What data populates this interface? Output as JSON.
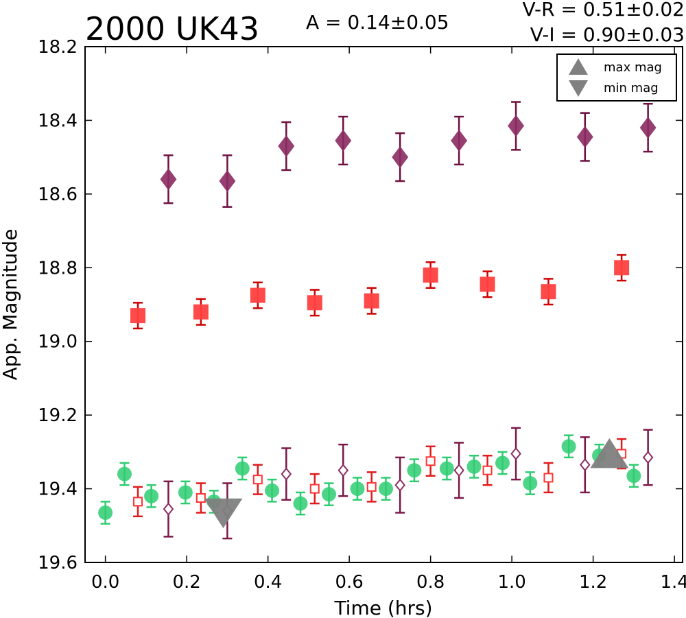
{
  "chart_data": {
    "type": "scatter",
    "title": "2000 UK43",
    "annotations": {
      "amplitude": "A  = 0.14±0.05",
      "v_r": "V-R = 0.51±0.02",
      "v_i": "V-I  = 0.90±0.03"
    },
    "xlabel": "Time (hrs)",
    "ylabel": "App. Magnitude",
    "xlim": [
      -0.05,
      1.42
    ],
    "ylim": [
      19.6,
      18.2
    ],
    "y_inverted": true,
    "grid": false,
    "xticks": [
      "0.0",
      "0.2",
      "0.4",
      "0.6",
      "0.8",
      "1.0",
      "1.2",
      "1.4"
    ],
    "yticks": [
      "18.2",
      "18.4",
      "18.6",
      "18.8",
      "19.0",
      "19.2",
      "19.4",
      "19.6"
    ],
    "legend": {
      "placement": "top-right",
      "entries": [
        {
          "label": "max mag",
          "marker": "triangle-up",
          "color": "#808080"
        },
        {
          "label": "min mag",
          "marker": "triangle-down",
          "color": "#808080"
        }
      ]
    },
    "series": [
      {
        "key": "green-circles",
        "marker": "circle",
        "filled": true,
        "color": "#2ecc71",
        "err_color": "#2ecc71",
        "x": [
          0.0,
          0.047,
          0.113,
          0.197,
          0.267,
          0.337,
          0.41,
          0.48,
          0.55,
          0.62,
          0.69,
          0.76,
          0.84,
          0.907,
          0.977,
          1.045,
          1.14,
          1.215,
          1.3
        ],
        "y": [
          19.465,
          19.36,
          19.42,
          19.41,
          19.435,
          19.345,
          19.405,
          19.44,
          19.415,
          19.4,
          19.4,
          19.35,
          19.345,
          19.34,
          19.33,
          19.385,
          19.285,
          19.31,
          19.365
        ],
        "err": [
          0.03,
          0.03,
          0.03,
          0.03,
          0.03,
          0.03,
          0.03,
          0.03,
          0.03,
          0.03,
          0.03,
          0.03,
          0.03,
          0.03,
          0.03,
          0.03,
          0.03,
          0.03,
          0.03
        ]
      },
      {
        "key": "red-open-squares",
        "marker": "square",
        "filled": false,
        "color": "#ff3333",
        "err_color": "#e01a1a",
        "x": [
          0.08,
          0.235,
          0.375,
          0.515,
          0.655,
          0.8,
          0.94,
          1.09,
          1.27
        ],
        "y": [
          19.435,
          19.425,
          19.375,
          19.4,
          19.395,
          19.325,
          19.35,
          19.37,
          19.305
        ],
        "err": [
          0.04,
          0.04,
          0.04,
          0.04,
          0.04,
          0.04,
          0.04,
          0.04,
          0.04
        ]
      },
      {
        "key": "purple-open-diamonds",
        "marker": "diamond",
        "filled": false,
        "color": "#8b2b62",
        "err_color": "#7a1848",
        "x": [
          0.155,
          0.3,
          0.445,
          0.585,
          0.725,
          0.87,
          1.01,
          1.18,
          1.335
        ],
        "y": [
          19.455,
          19.46,
          19.36,
          19.35,
          19.39,
          19.35,
          19.305,
          19.335,
          19.315
        ],
        "err": [
          0.075,
          0.075,
          0.07,
          0.07,
          0.075,
          0.075,
          0.07,
          0.075,
          0.075
        ]
      },
      {
        "key": "red-filled-squares",
        "marker": "square",
        "filled": true,
        "color": "#ff4040",
        "err_color": "#cc0000",
        "x": [
          0.08,
          0.235,
          0.375,
          0.515,
          0.655,
          0.8,
          0.94,
          1.09,
          1.27
        ],
        "y": [
          18.93,
          18.92,
          18.875,
          18.895,
          18.89,
          18.82,
          18.845,
          18.865,
          18.8
        ],
        "err": [
          0.035,
          0.035,
          0.035,
          0.035,
          0.035,
          0.035,
          0.035,
          0.035,
          0.035
        ]
      },
      {
        "key": "purple-filled-diamonds",
        "marker": "diamond",
        "filled": true,
        "color": "#8b2b62",
        "err_color": "#6e1040",
        "x": [
          0.155,
          0.3,
          0.445,
          0.585,
          0.725,
          0.87,
          1.01,
          1.18,
          1.335
        ],
        "y": [
          18.56,
          18.565,
          18.47,
          18.455,
          18.5,
          18.455,
          18.415,
          18.445,
          18.42
        ],
        "err": [
          0.065,
          0.07,
          0.065,
          0.065,
          0.065,
          0.065,
          0.065,
          0.065,
          0.065
        ]
      },
      {
        "key": "extrema",
        "marker": "triangle",
        "filled": true,
        "color": "#808080",
        "points": [
          {
            "label": "min mag",
            "x": 0.29,
            "y": 19.455,
            "direction": "down"
          },
          {
            "label": "max mag",
            "x": 1.24,
            "y": 19.315,
            "direction": "up"
          }
        ]
      }
    ]
  }
}
